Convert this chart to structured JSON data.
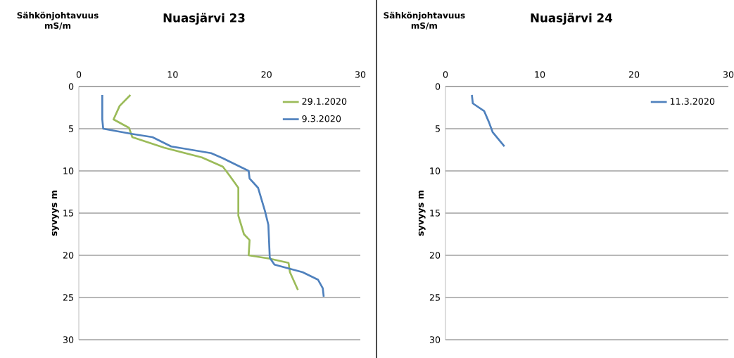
{
  "chart_data": [
    {
      "type": "line",
      "title": "Nuasjärvi 23",
      "xlabel": "Sähkönjohtavuus mS/m",
      "ylabel": "syvyys m",
      "xlim": [
        0,
        30
      ],
      "xticks": [
        0,
        10,
        20,
        30
      ],
      "ylim": [
        30,
        0
      ],
      "yticks": [
        0,
        5,
        10,
        15,
        20,
        25,
        30
      ],
      "grid": "y",
      "legend": "top right",
      "series": [
        {
          "name": "29.1.2020",
          "color": "#9bbb59",
          "x": [
            5.5,
            4.35,
            3.7,
            5.35,
            5.7,
            9.1,
            13.1,
            15.35,
            16.1,
            17.0,
            17.0,
            17.6,
            18.2,
            18.1,
            20.35,
            22.35,
            22.5,
            23.35
          ],
          "values": [
            1.0,
            2.3,
            3.9,
            4.9,
            6.0,
            7.25,
            8.4,
            9.5,
            10.6,
            12.0,
            15.3,
            17.5,
            18.2,
            20.0,
            20.4,
            20.9,
            22.0,
            24.1
          ]
        },
        {
          "name": "9.3.2020",
          "color": "#4f81bd",
          "x": [
            2.5,
            2.5,
            2.6,
            5.6,
            7.85,
            9.85,
            14.1,
            15.35,
            18.1,
            18.2,
            19.1,
            19.85,
            20.2,
            20.35,
            20.85,
            23.85,
            25.5,
            26.0,
            26.1
          ],
          "values": [
            1.0,
            3.9,
            5.0,
            5.6,
            6.0,
            7.1,
            7.9,
            8.5,
            10.0,
            10.9,
            12.0,
            14.8,
            16.4,
            20.3,
            21.1,
            22.0,
            22.9,
            23.9,
            24.9
          ]
        }
      ]
    },
    {
      "type": "line",
      "title": "Nuasjärvi 24",
      "xlabel": "Sähkönjohtavuus mS/m",
      "ylabel": "syvyys m",
      "xlim": [
        0,
        30
      ],
      "xticks": [
        0,
        10,
        20,
        30
      ],
      "ylim": [
        30,
        0
      ],
      "yticks": [
        0,
        5,
        10,
        15,
        20,
        25,
        30
      ],
      "grid": "y",
      "legend": "top right",
      "series": [
        {
          "name": "11.3.2020",
          "color": "#4f81bd",
          "x": [
            2.8,
            2.9,
            4.1,
            4.6,
            5.0,
            6.25
          ],
          "values": [
            1.0,
            2.0,
            2.9,
            4.2,
            5.4,
            7.1
          ]
        }
      ]
    }
  ]
}
